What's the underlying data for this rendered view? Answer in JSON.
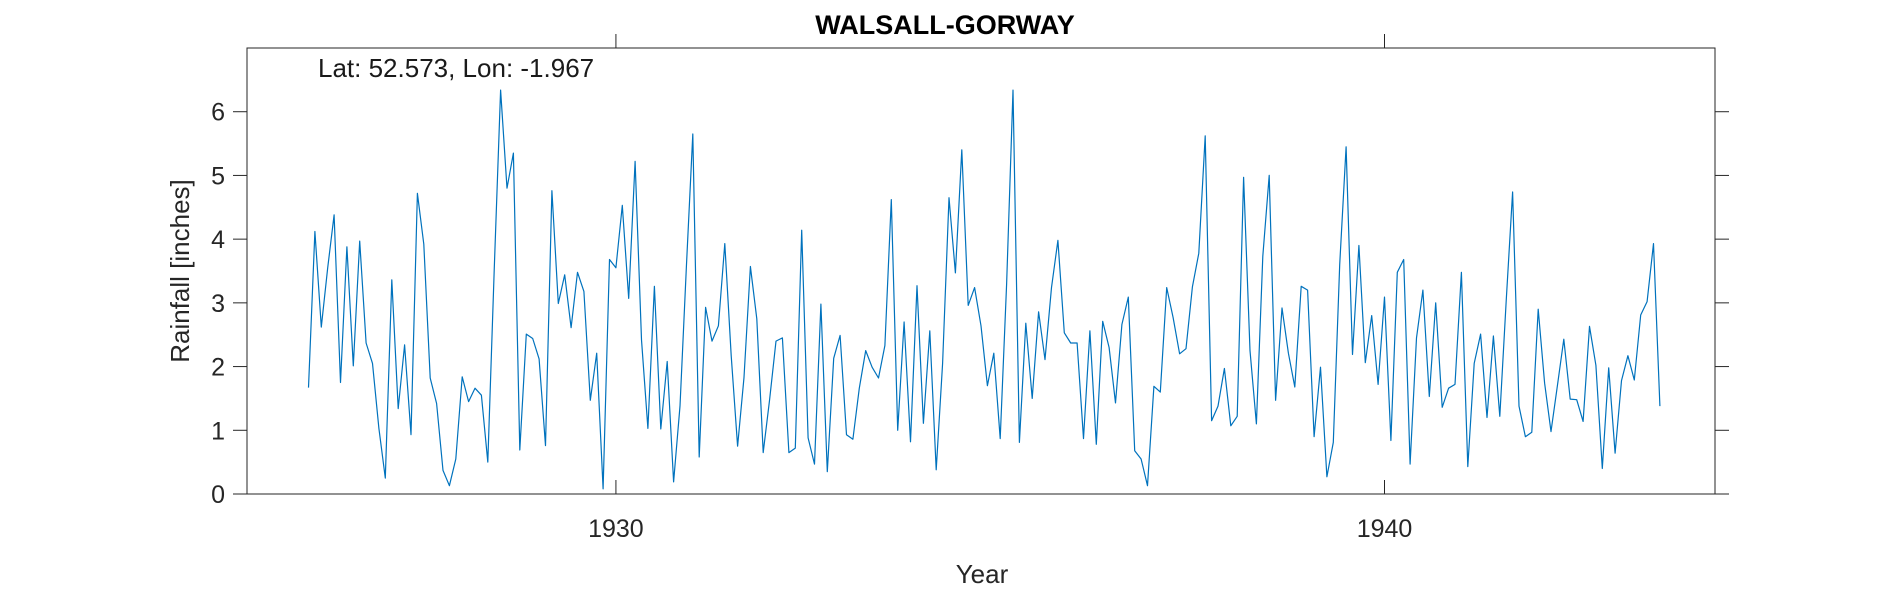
{
  "chart_data": {
    "type": "line",
    "title": "WALSALL-GORWAY",
    "annotation": "Lat: 52.573, Lon: -1.967",
    "xlabel": "Year",
    "ylabel": "Rainfall [inches]",
    "xlim": [
      1925.2,
      1944.3
    ],
    "ylim": [
      0,
      7
    ],
    "xticks": [
      1930,
      1940
    ],
    "xtick_labels": [
      "1930",
      "1940"
    ],
    "yticks": [
      0,
      1,
      2,
      3,
      4,
      5,
      6
    ],
    "ytick_labels": [
      "0",
      "1",
      "2",
      "3",
      "4",
      "5",
      "6"
    ],
    "grid": false,
    "series": [
      {
        "color": "#0072BD",
        "x_start": 1926.0,
        "x_step": 0.0833333,
        "values": [
          1.67,
          4.12,
          2.62,
          3.55,
          4.38,
          1.75,
          3.88,
          2.01,
          3.97,
          2.37,
          2.05,
          1.03,
          0.25,
          3.36,
          1.34,
          2.34,
          0.93,
          4.72,
          3.92,
          1.82,
          1.42,
          0.37,
          0.13,
          0.55,
          1.84,
          1.45,
          1.66,
          1.55,
          0.5,
          3.51,
          6.34,
          4.8,
          5.35,
          0.69,
          2.51,
          2.44,
          2.12,
          0.76,
          4.76,
          2.99,
          3.44,
          2.61,
          3.48,
          3.18,
          1.47,
          2.21,
          0.08,
          3.68,
          3.55,
          4.53,
          3.07,
          5.22,
          2.42,
          1.03,
          3.26,
          1.02,
          2.08,
          0.19,
          1.38,
          3.57,
          5.65,
          0.58,
          2.93,
          2.4,
          2.64,
          3.93,
          2.17,
          0.75,
          1.83,
          3.57,
          2.75,
          0.65,
          1.48,
          2.4,
          2.45,
          0.65,
          0.72,
          4.14,
          0.88,
          0.47,
          2.98,
          0.35,
          2.13,
          2.49,
          0.93,
          0.86,
          1.66,
          2.25,
          1.99,
          1.82,
          2.33,
          4.62,
          1.0,
          2.7,
          0.82,
          3.27,
          1.11,
          2.56,
          0.38,
          2.05,
          4.65,
          3.47,
          5.4,
          2.96,
          3.24,
          2.64,
          1.7,
          2.21,
          0.87,
          3.29,
          6.34,
          0.81,
          2.68,
          1.5,
          2.86,
          2.11,
          3.24,
          3.98,
          2.53,
          2.37,
          2.37,
          0.87,
          2.56,
          0.78,
          2.71,
          2.3,
          1.43,
          2.66,
          3.09,
          0.68,
          0.55,
          0.13,
          1.69,
          1.6,
          3.24,
          2.77,
          2.2,
          2.28,
          3.25,
          3.78,
          5.62,
          1.15,
          1.38,
          1.97,
          1.07,
          1.22,
          4.97,
          2.25,
          1.1,
          3.73,
          5.0,
          1.47,
          2.92,
          2.21,
          1.68,
          3.26,
          3.2,
          0.9,
          1.99,
          0.27,
          0.81,
          3.6,
          5.45,
          2.19,
          3.9,
          2.06,
          2.8,
          1.72,
          3.09,
          0.84,
          3.48,
          3.68,
          0.47,
          2.45,
          3.2,
          1.53,
          3.0,
          1.36,
          1.66,
          1.72,
          3.48,
          0.43,
          2.05,
          2.51,
          1.2,
          2.48,
          1.22,
          3.03,
          4.74,
          1.38,
          0.9,
          0.97,
          2.9,
          1.74,
          0.98,
          1.7,
          2.43,
          1.49,
          1.48,
          1.14,
          2.63,
          2.02,
          0.4,
          1.98,
          0.64,
          1.78,
          2.17,
          1.79,
          2.81,
          3.02,
          3.93,
          1.38
        ]
      }
    ]
  }
}
